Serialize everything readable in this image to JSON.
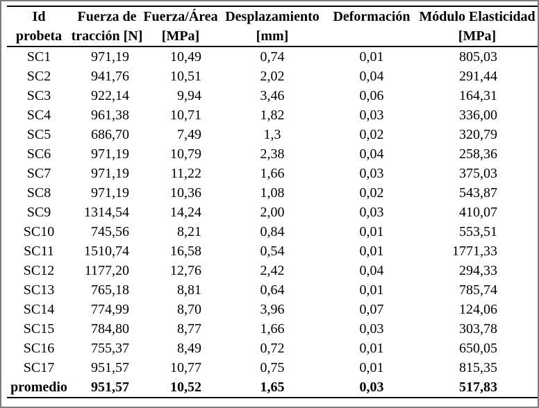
{
  "frame": {
    "background": "#ffffff",
    "border_color": "#7d7d7d",
    "rule_color": "#000000",
    "text_color": "#000000"
  },
  "table": {
    "columns": [
      {
        "line1": "Id",
        "line2": "probeta"
      },
      {
        "line1": "Fuerza de",
        "line2": "tracción [N]"
      },
      {
        "line1": "Fuerza/Área",
        "line2": "[MPa]"
      },
      {
        "line1": "Desplazamiento",
        "line2": "[mm]"
      },
      {
        "line1": "Deformación",
        "line2": ""
      },
      {
        "line1": "Módulo Elasticidad",
        "line2": "[MPa]"
      }
    ],
    "rows": [
      [
        "SC1",
        "971,19",
        "10,49",
        "0,74",
        "0,01",
        "805,03"
      ],
      [
        "SC2",
        "941,76",
        "10,51",
        "2,02",
        "0,04",
        "291,44"
      ],
      [
        "SC3",
        "922,14",
        "9,94",
        "3,46",
        "0,06",
        "164,31"
      ],
      [
        "SC4",
        "961,38",
        "10,71",
        "1,82",
        "0,03",
        "336,00"
      ],
      [
        "SC5",
        "686,70",
        "7,49",
        "1,3",
        "0,02",
        "320,79"
      ],
      [
        "SC6",
        "971,19",
        "10,79",
        "2,38",
        "0,04",
        "258,36"
      ],
      [
        "SC7",
        "971,19",
        "11,22",
        "1,66",
        "0,03",
        "375,03"
      ],
      [
        "SC8",
        "971,19",
        "10,36",
        "1,08",
        "0,02",
        "543,87"
      ],
      [
        "SC9",
        "1314,54",
        "14,24",
        "2,00",
        "0,03",
        "410,07"
      ],
      [
        "SC10",
        "745,56",
        "8,21",
        "0,84",
        "0,01",
        "553,51"
      ],
      [
        "SC11",
        "1510,74",
        "16,58",
        "0,54",
        "0,01",
        "1771,33"
      ],
      [
        "SC12",
        "1177,20",
        "12,76",
        "2,42",
        "0,04",
        "294,33"
      ],
      [
        "SC13",
        "765,18",
        "8,81",
        "0,64",
        "0,01",
        "785,74"
      ],
      [
        "SC14",
        "774,99",
        "8,70",
        "3,96",
        "0,07",
        "124,06"
      ],
      [
        "SC15",
        "784,80",
        "8,77",
        "1,66",
        "0,03",
        "303,78"
      ],
      [
        "SC16",
        "755,37",
        "8,49",
        "0,72",
        "0,01",
        "650,05"
      ],
      [
        "SC17",
        "951,57",
        "10,77",
        "0,75",
        "0,01",
        "815,35"
      ]
    ],
    "footer": [
      "promedio",
      "951,57",
      "10,52",
      "1,65",
      "0,03",
      "517,83"
    ]
  }
}
